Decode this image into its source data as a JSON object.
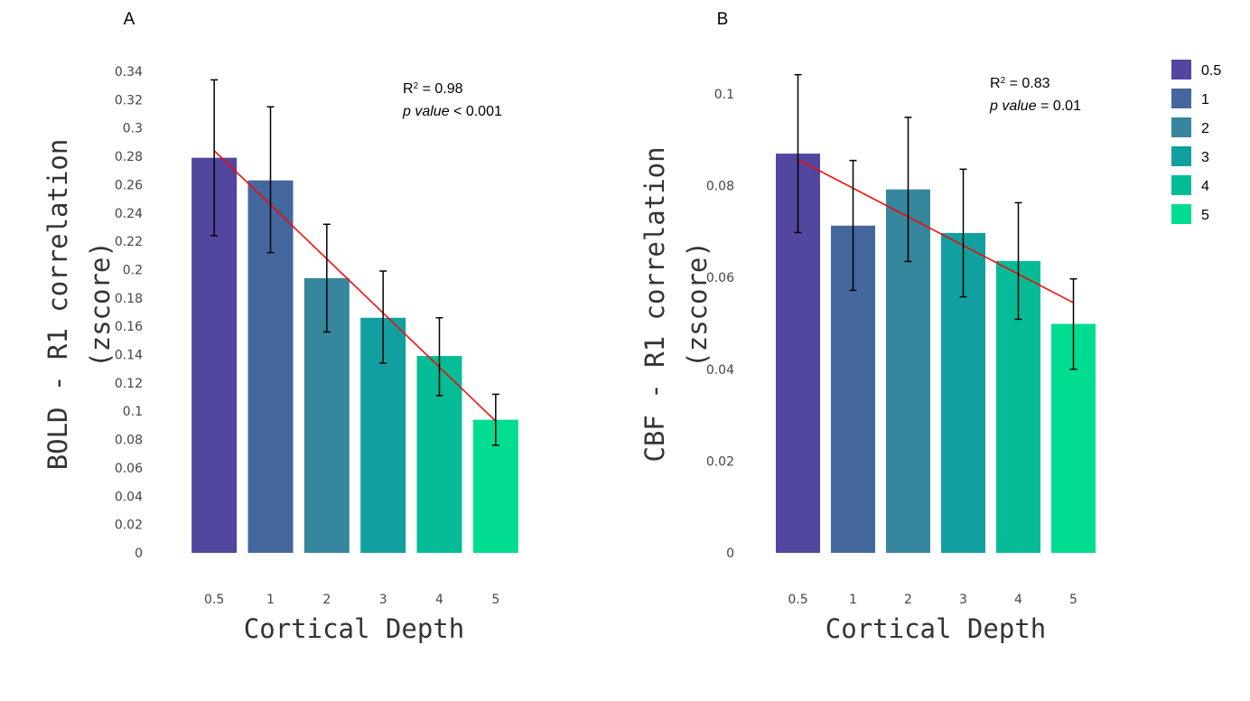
{
  "colors": {
    "0.5": "#51479e",
    "1": "#44679e",
    "2": "#36879e",
    "3": "#11a09f",
    "4": "#05bc97",
    "5": "#00dc90",
    "fit_line": "#ff0000",
    "error_bar": "#000000"
  },
  "legend": {
    "entries": [
      "0.5",
      "1",
      "2",
      "3",
      "4",
      "5"
    ]
  },
  "chart_data": [
    {
      "type": "bar",
      "panel_label": "A",
      "title": "",
      "xlabel": "Cortical Depth",
      "ylabel_line1": "BOLD - R1 correlation",
      "ylabel_line2": "(zscore)",
      "categories": [
        "0.5",
        "1",
        "2",
        "3",
        "4",
        "5"
      ],
      "values": [
        0.279,
        0.263,
        0.194,
        0.166,
        0.139,
        0.094
      ],
      "error_low": [
        0.224,
        0.212,
        0.156,
        0.134,
        0.111,
        0.076
      ],
      "error_high": [
        0.334,
        0.315,
        0.232,
        0.199,
        0.166,
        0.112
      ],
      "fit_line": {
        "start": 0.284,
        "end": 0.093
      },
      "ylim": [
        0,
        0.34
      ],
      "yticks": [
        "0",
        "0.02",
        "0.04",
        "0.06",
        "0.08",
        "0.1",
        "0.12",
        "0.14",
        "0.16",
        "0.18",
        "0.2",
        "0.22",
        "0.24",
        "0.26",
        "0.28",
        "0.3",
        "0.32",
        "0.34"
      ],
      "stats": {
        "r2_label": "R",
        "r2_sup": "2",
        "r2_value": " = 0.98",
        "p_label": "p value",
        "p_value": " < 0.001"
      }
    },
    {
      "type": "bar",
      "panel_label": "B",
      "title": "",
      "xlabel": "Cortical Depth",
      "ylabel_line1": "CBF - R1 correlation",
      "ylabel_line2": "(zscore)",
      "categories": [
        "0.5",
        "1",
        "2",
        "3",
        "4",
        "5"
      ],
      "values": [
        0.087,
        0.0713,
        0.0792,
        0.0697,
        0.0636,
        0.0499
      ],
      "error_low": [
        0.0698,
        0.0572,
        0.0635,
        0.0558,
        0.0509,
        0.04
      ],
      "error_high": [
        0.1042,
        0.0855,
        0.0949,
        0.0836,
        0.0763,
        0.0597
      ],
      "fit_line": {
        "start": 0.0857,
        "end": 0.0545
      },
      "ylim": [
        0,
        0.1
      ],
      "yticks": [
        "0",
        "0.02",
        "0.04",
        "0.06",
        "0.08",
        "0.1"
      ],
      "stats": {
        "r2_label": "R",
        "r2_sup": "2",
        "r2_value": " = 0.83",
        "p_label": "p value",
        "p_value": " = 0.01"
      }
    }
  ]
}
